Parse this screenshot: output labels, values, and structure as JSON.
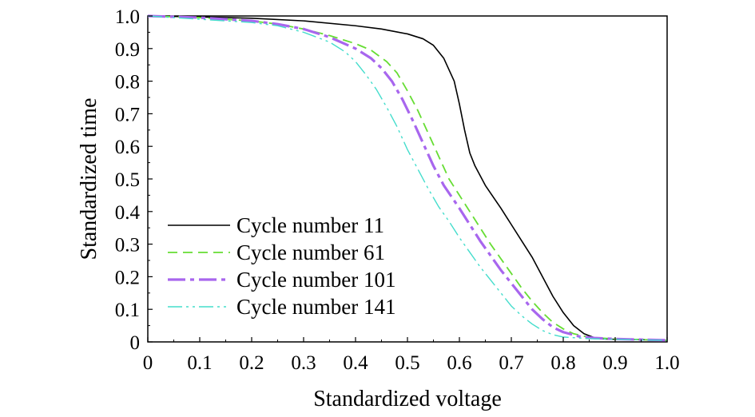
{
  "chart_data": {
    "type": "line",
    "title": "",
    "xlabel": "Standardized voltage",
    "ylabel": "Standardized time",
    "xlim": [
      0,
      1.0
    ],
    "ylim": [
      0,
      1.0
    ],
    "x_ticks": [
      "0",
      "0.1",
      "0.2",
      "0.3",
      "0.4",
      "0.5",
      "0.6",
      "0.7",
      "0.8",
      "0.9",
      "1.0"
    ],
    "y_ticks": [
      "0",
      "0.1",
      "0.2",
      "0.3",
      "0.4",
      "0.5",
      "0.6",
      "0.7",
      "0.8",
      "0.9",
      "1.0"
    ],
    "grid": false,
    "legend_position": "bottom-left",
    "series": [
      {
        "name": "Cycle number 11",
        "color": "#000000",
        "style": "solid",
        "points": [
          [
            0,
            1.0
          ],
          [
            0.1,
            0.997
          ],
          [
            0.2,
            0.993
          ],
          [
            0.3,
            0.985
          ],
          [
            0.4,
            0.97
          ],
          [
            0.45,
            0.96
          ],
          [
            0.5,
            0.945
          ],
          [
            0.53,
            0.93
          ],
          [
            0.55,
            0.91
          ],
          [
            0.57,
            0.87
          ],
          [
            0.59,
            0.8
          ],
          [
            0.6,
            0.73
          ],
          [
            0.61,
            0.65
          ],
          [
            0.62,
            0.58
          ],
          [
            0.63,
            0.54
          ],
          [
            0.65,
            0.48
          ],
          [
            0.68,
            0.41
          ],
          [
            0.7,
            0.36
          ],
          [
            0.72,
            0.31
          ],
          [
            0.74,
            0.26
          ],
          [
            0.76,
            0.2
          ],
          [
            0.78,
            0.14
          ],
          [
            0.8,
            0.09
          ],
          [
            0.82,
            0.05
          ],
          [
            0.84,
            0.025
          ],
          [
            0.86,
            0.013
          ],
          [
            0.88,
            0.009
          ],
          [
            0.9,
            0.008
          ],
          [
            0.95,
            0.007
          ],
          [
            1.0,
            0.005
          ]
        ]
      },
      {
        "name": "Cycle number 61",
        "color": "#66dd33",
        "style": "dashed",
        "points": [
          [
            0,
            1.0
          ],
          [
            0.1,
            0.995
          ],
          [
            0.2,
            0.985
          ],
          [
            0.25,
            0.975
          ],
          [
            0.3,
            0.96
          ],
          [
            0.35,
            0.94
          ],
          [
            0.4,
            0.915
          ],
          [
            0.43,
            0.895
          ],
          [
            0.46,
            0.86
          ],
          [
            0.48,
            0.825
          ],
          [
            0.5,
            0.77
          ],
          [
            0.52,
            0.71
          ],
          [
            0.54,
            0.64
          ],
          [
            0.56,
            0.57
          ],
          [
            0.58,
            0.5
          ],
          [
            0.6,
            0.45
          ],
          [
            0.62,
            0.4
          ],
          [
            0.64,
            0.35
          ],
          [
            0.66,
            0.3
          ],
          [
            0.68,
            0.255
          ],
          [
            0.7,
            0.21
          ],
          [
            0.72,
            0.165
          ],
          [
            0.74,
            0.125
          ],
          [
            0.76,
            0.09
          ],
          [
            0.78,
            0.06
          ],
          [
            0.8,
            0.04
          ],
          [
            0.82,
            0.025
          ],
          [
            0.85,
            0.014
          ],
          [
            0.9,
            0.009
          ],
          [
            0.95,
            0.007
          ],
          [
            1.0,
            0.005
          ]
        ]
      },
      {
        "name": "Cycle number 101",
        "color": "#a866ee",
        "style": "dashdot",
        "points": [
          [
            0,
            1.0
          ],
          [
            0.1,
            0.995
          ],
          [
            0.2,
            0.985
          ],
          [
            0.25,
            0.975
          ],
          [
            0.3,
            0.96
          ],
          [
            0.35,
            0.935
          ],
          [
            0.4,
            0.9
          ],
          [
            0.43,
            0.87
          ],
          [
            0.45,
            0.84
          ],
          [
            0.47,
            0.8
          ],
          [
            0.49,
            0.745
          ],
          [
            0.51,
            0.68
          ],
          [
            0.53,
            0.61
          ],
          [
            0.55,
            0.54
          ],
          [
            0.57,
            0.48
          ],
          [
            0.6,
            0.41
          ],
          [
            0.62,
            0.36
          ],
          [
            0.64,
            0.31
          ],
          [
            0.66,
            0.265
          ],
          [
            0.68,
            0.22
          ],
          [
            0.7,
            0.18
          ],
          [
            0.72,
            0.14
          ],
          [
            0.74,
            0.1
          ],
          [
            0.76,
            0.07
          ],
          [
            0.78,
            0.045
          ],
          [
            0.8,
            0.03
          ],
          [
            0.83,
            0.017
          ],
          [
            0.86,
            0.012
          ],
          [
            0.9,
            0.009
          ],
          [
            0.95,
            0.007
          ],
          [
            1.0,
            0.005
          ]
        ]
      },
      {
        "name": "Cycle number 141",
        "color": "#44ddcc",
        "style": "dashdotdot",
        "points": [
          [
            0,
            1.0
          ],
          [
            0.1,
            0.99
          ],
          [
            0.2,
            0.98
          ],
          [
            0.25,
            0.97
          ],
          [
            0.3,
            0.95
          ],
          [
            0.35,
            0.92
          ],
          [
            0.38,
            0.89
          ],
          [
            0.4,
            0.86
          ],
          [
            0.42,
            0.82
          ],
          [
            0.44,
            0.775
          ],
          [
            0.46,
            0.72
          ],
          [
            0.48,
            0.66
          ],
          [
            0.5,
            0.59
          ],
          [
            0.52,
            0.53
          ],
          [
            0.54,
            0.47
          ],
          [
            0.56,
            0.415
          ],
          [
            0.58,
            0.37
          ],
          [
            0.6,
            0.32
          ],
          [
            0.62,
            0.275
          ],
          [
            0.64,
            0.23
          ],
          [
            0.66,
            0.19
          ],
          [
            0.68,
            0.15
          ],
          [
            0.7,
            0.11
          ],
          [
            0.72,
            0.08
          ],
          [
            0.74,
            0.055
          ],
          [
            0.76,
            0.035
          ],
          [
            0.78,
            0.022
          ],
          [
            0.8,
            0.015
          ],
          [
            0.85,
            0.01
          ],
          [
            0.9,
            0.008
          ],
          [
            0.95,
            0.006
          ],
          [
            1.0,
            0.005
          ]
        ]
      }
    ]
  }
}
